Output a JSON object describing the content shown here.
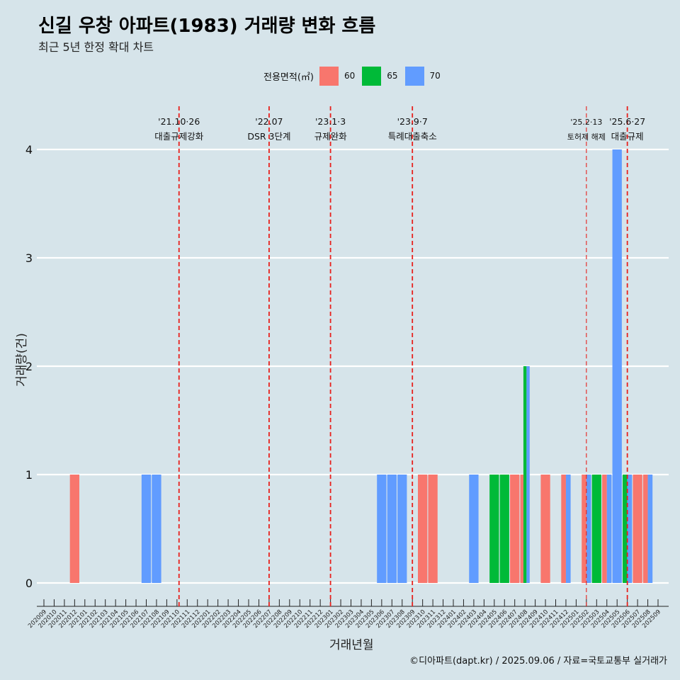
{
  "title": "신길 우창 아파트(1983) 거래량 변화 흐름",
  "subtitle": "최근 5년 한정 확대 차트",
  "legend": {
    "title": "전용면적(㎡)",
    "items": [
      {
        "label": "60",
        "color": "#f8766d"
      },
      {
        "label": "65",
        "color": "#00ba38"
      },
      {
        "label": "70",
        "color": "#619cff"
      }
    ]
  },
  "footer": "©디아파트(dapt.kr) / 2025.09.06 / 자료=국토교통부 실거래가",
  "chart_data": {
    "type": "bar",
    "stacked": false,
    "xlabel": "거래년월",
    "ylabel": "거래량(건)",
    "ylim": [
      0,
      4
    ],
    "yticks": [
      0,
      1,
      2,
      3,
      4
    ],
    "grid": "horizontal",
    "categories": [
      "202009",
      "202010",
      "202011",
      "202012",
      "202101",
      "202102",
      "202103",
      "202104",
      "202105",
      "202106",
      "202107",
      "202108",
      "202109",
      "202110",
      "202111",
      "202112",
      "202201",
      "202202",
      "202203",
      "202204",
      "202205",
      "202206",
      "202207",
      "202208",
      "202209",
      "202210",
      "202211",
      "202212",
      "202301",
      "202302",
      "202303",
      "202304",
      "202305",
      "202306",
      "202307",
      "202308",
      "202309",
      "202310",
      "202311",
      "202312",
      "202401",
      "202402",
      "202403",
      "202404",
      "202405",
      "202406",
      "202407",
      "202408",
      "202409",
      "202410",
      "202411",
      "202412",
      "202501",
      "202502",
      "202503",
      "202504",
      "202505",
      "202506",
      "202507",
      "202508",
      "202509"
    ],
    "bars": [
      {
        "month": "202012",
        "segments": [
          {
            "area": "60",
            "value": 1
          }
        ]
      },
      {
        "month": "202107",
        "segments": [
          {
            "area": "70",
            "value": 1
          }
        ]
      },
      {
        "month": "202108",
        "segments": [
          {
            "area": "70",
            "value": 1
          }
        ]
      },
      {
        "month": "202306",
        "segments": [
          {
            "area": "70",
            "value": 1
          }
        ]
      },
      {
        "month": "202307",
        "segments": [
          {
            "area": "70",
            "value": 1
          }
        ]
      },
      {
        "month": "202308",
        "segments": [
          {
            "area": "70",
            "value": 1
          }
        ]
      },
      {
        "month": "202310",
        "segments": [
          {
            "area": "60",
            "value": 1
          }
        ]
      },
      {
        "month": "202311",
        "segments": [
          {
            "area": "60",
            "value": 1
          }
        ]
      },
      {
        "month": "202403",
        "segments": [
          {
            "area": "70",
            "value": 1
          }
        ]
      },
      {
        "month": "202405",
        "segments": [
          {
            "area": "65",
            "value": 1
          }
        ]
      },
      {
        "month": "202406",
        "segments": [
          {
            "area": "65",
            "value": 1
          }
        ]
      },
      {
        "month": "202407",
        "segments": [
          {
            "area": "60",
            "value": 1
          }
        ]
      },
      {
        "month": "202408",
        "segments": [
          {
            "area": "60",
            "value": 1
          },
          {
            "area": "65",
            "value": 2
          },
          {
            "area": "70",
            "value": 2
          }
        ]
      },
      {
        "month": "202410",
        "segments": [
          {
            "area": "60",
            "value": 1
          }
        ]
      },
      {
        "month": "202412",
        "segments": [
          {
            "area": "60",
            "value": 1
          },
          {
            "area": "70",
            "value": 1
          }
        ]
      },
      {
        "month": "202502",
        "segments": [
          {
            "area": "60",
            "value": 1
          },
          {
            "area": "70",
            "value": 1
          }
        ]
      },
      {
        "month": "202503",
        "segments": [
          {
            "area": "65",
            "value": 1
          }
        ]
      },
      {
        "month": "202504",
        "segments": [
          {
            "area": "60",
            "value": 1
          },
          {
            "area": "70",
            "value": 1
          }
        ]
      },
      {
        "month": "202505",
        "segments": [
          {
            "area": "70",
            "value": 4
          }
        ]
      },
      {
        "month": "202506",
        "segments": [
          {
            "area": "65",
            "value": 1
          },
          {
            "area": "70",
            "value": 1
          }
        ]
      },
      {
        "month": "202507",
        "segments": [
          {
            "area": "60",
            "value": 1
          }
        ]
      },
      {
        "month": "202508",
        "segments": [
          {
            "area": "60",
            "value": 1
          },
          {
            "area": "70",
            "value": 1
          }
        ]
      }
    ],
    "annotations": [
      {
        "month": "202110",
        "offset": 0.2,
        "date": "'21.10·26",
        "label": "대출규제강화",
        "style": "bold"
      },
      {
        "month": "202207",
        "offset": 0.0,
        "date": "'22.07",
        "label": "DSR 3단계",
        "style": "bold"
      },
      {
        "month": "202301",
        "offset": 0.0,
        "date": "'23.1·3",
        "label": "규제완화",
        "style": "bold"
      },
      {
        "month": "202309",
        "offset": 0.0,
        "date": "'23.9·7",
        "label": "특례대출축소",
        "style": "bold"
      },
      {
        "month": "202502",
        "offset": 0.0,
        "date": "'25.2·13",
        "label": "토허제 해제",
        "style": "thin"
      },
      {
        "month": "202506",
        "offset": 0.0,
        "date": "'25.6·27",
        "label": "대출규제",
        "style": "bold"
      }
    ]
  }
}
